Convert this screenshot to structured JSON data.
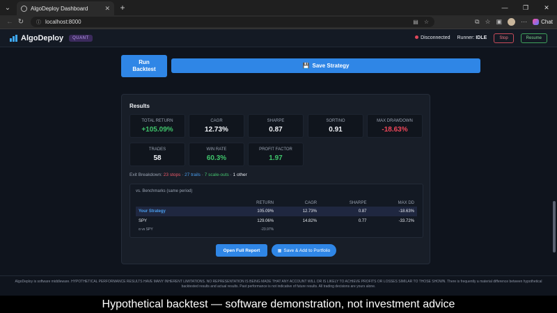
{
  "browser": {
    "tab_title": "AlgoDeploy Dashboard",
    "tab_close": "✕",
    "new_tab": "+",
    "url": "localhost:8000",
    "chat_label": "Chat"
  },
  "header": {
    "brand": "AlgoDeploy",
    "badge": "QUANT",
    "status": "Disconnected",
    "runner_label": "Runner:",
    "runner_state": "IDLE",
    "stop_label": "Stop",
    "resume_label": "Resume"
  },
  "actions": {
    "run_line1": "Run",
    "run_line2": "Backtest",
    "save_strategy": "Save Strategy"
  },
  "results": {
    "title": "Results",
    "metrics": [
      {
        "label": "TOTAL RETURN",
        "value": "+105.09%"
      },
      {
        "label": "CAGR",
        "value": "12.73%"
      },
      {
        "label": "SHARPE",
        "value": "0.87"
      },
      {
        "label": "SORTINO",
        "value": "0.91"
      },
      {
        "label": "MAX DRAWDOWN",
        "value": "-18.63%"
      },
      {
        "label": "TRADES",
        "value": "58"
      },
      {
        "label": "WIN RATE",
        "value": "60.3%"
      },
      {
        "label": "PROFIT FACTOR",
        "value": "1.97"
      }
    ],
    "exit_label": "Exit Breakdown:",
    "exit_stops": "23 stops",
    "exit_trails": "27 trails",
    "exit_scaleouts": "7 scale-outs",
    "exit_other": "1 other",
    "sep": "·"
  },
  "benchmarks": {
    "title": "vs. Benchmarks (same period)",
    "headers": [
      "",
      "RETURN",
      "CAGR",
      "SHARPE",
      "MAX DD"
    ],
    "rows": [
      [
        "Your Strategy",
        "105.09%",
        "12.73%",
        "0.87",
        "-18.63%"
      ],
      [
        "SPY",
        "129.06%",
        "14.82%",
        "0.77",
        "-33.72%"
      ]
    ],
    "alpha_label": "α vs SPY",
    "alpha_value": "-23.97%"
  },
  "buttons": {
    "open_report": "Open Full Report",
    "save_portfolio": "Save & Add to Portfolio"
  },
  "footer": {
    "disclaimer": "AlgoDeploy is software middleware. HYPOTHETICAL PERFORMANCE RESULTS HAVE MANY INHERENT LIMITATIONS. NO REPRESENTATION IS BEING MADE THAT ANY ACCOUNT WILL OR IS LIKELY TO ACHIEVE PROFITS OR LOSSES SIMILAR TO THOSE SHOWN. There is frequently a material difference between hypothetical backtested results and actual results. Past performance is not indicative of future results. All trading decisions are yours alone."
  },
  "caption": "Hypothetical backtest — software demonstration, not investment advice"
}
